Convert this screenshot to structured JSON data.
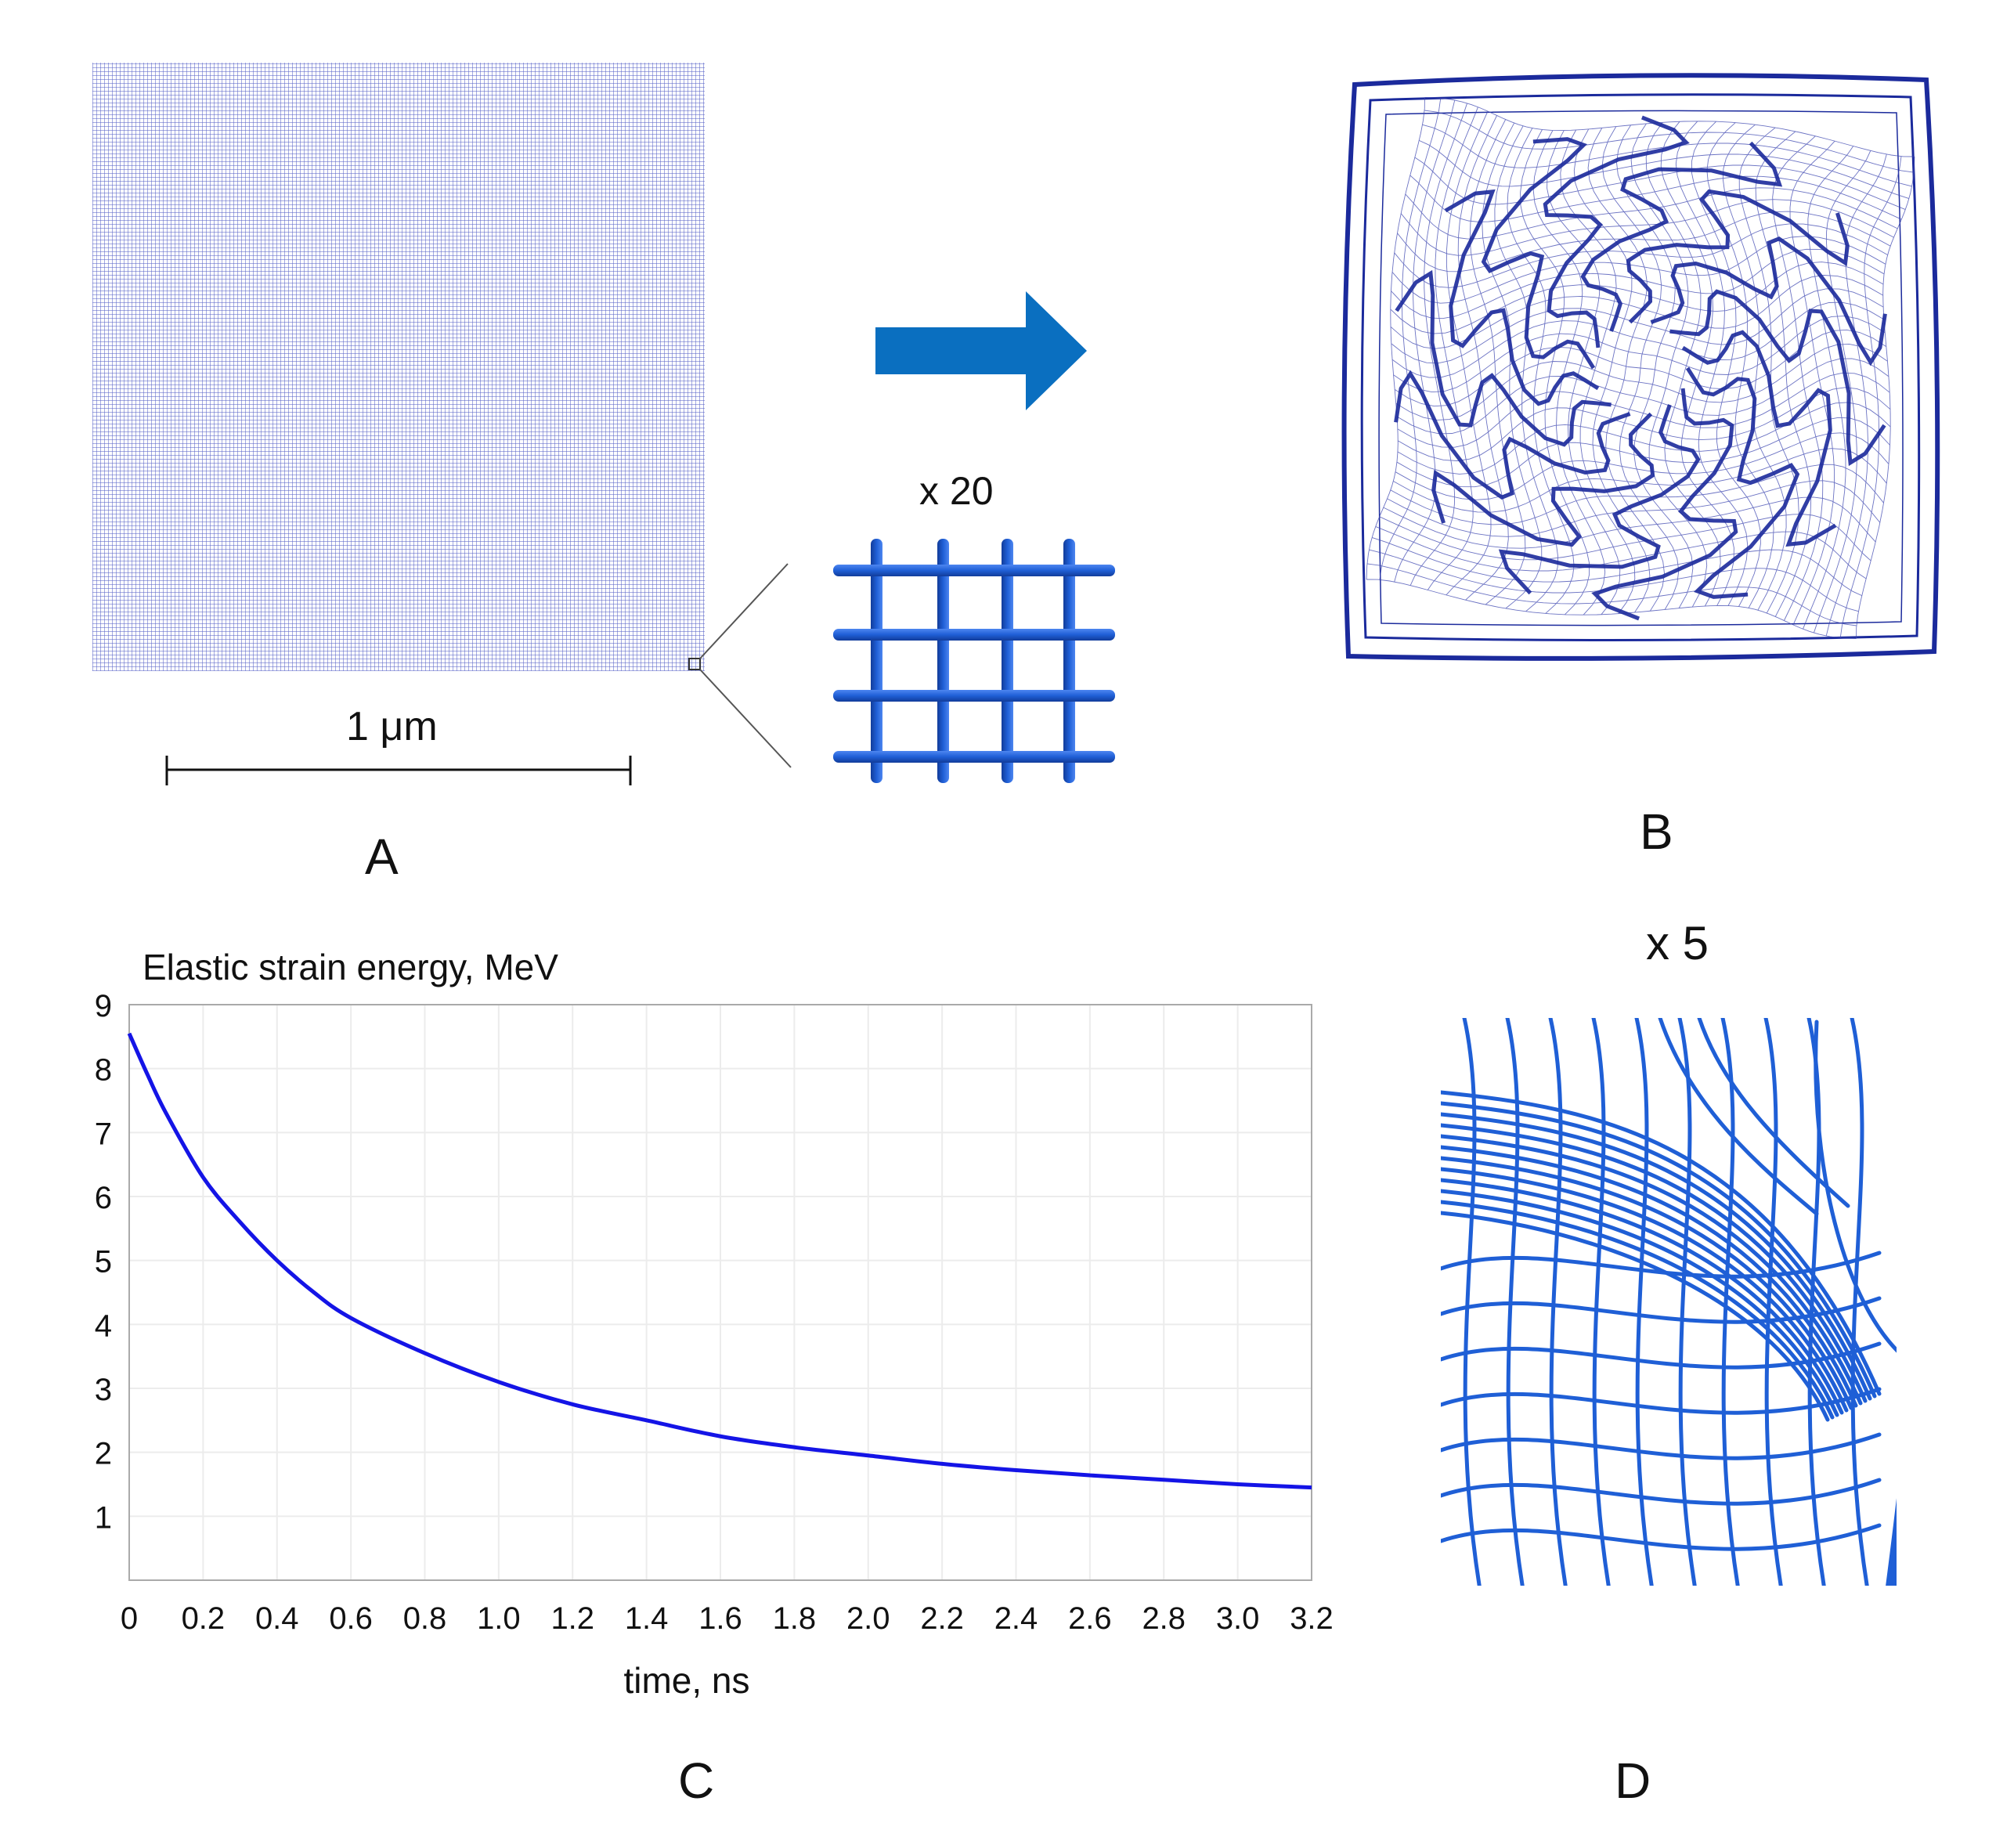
{
  "panels": {
    "a": {
      "letter": "A",
      "scale_label": "1 μm",
      "zoom_label": "x 20"
    },
    "b": {
      "letter": "B"
    },
    "c": {
      "letter": "C"
    },
    "d": {
      "letter": "D",
      "zoom_label": "x 5"
    }
  },
  "colors": {
    "mesh": "#3b45b0",
    "tube": "#1f5fd6",
    "arrow": "#0a6fc0",
    "curve": "#1414e6",
    "deformed": "#1b2a9c"
  },
  "chart_data": {
    "type": "line",
    "title": "Elastic strain energy, MeV",
    "xlabel": "time, ns",
    "ylabel": "",
    "xlim": [
      0,
      3.2
    ],
    "ylim": [
      0,
      9
    ],
    "x_ticks": [
      "0",
      "0.2",
      "0.4",
      "0.6",
      "0.8",
      "1.0",
      "1.2",
      "1.4",
      "1.6",
      "1.8",
      "2.0",
      "2.2",
      "2.4",
      "2.6",
      "2.8",
      "3.0",
      "3.2"
    ],
    "y_ticks": [
      "1",
      "2",
      "3",
      "4",
      "5",
      "6",
      "7",
      "8",
      "9"
    ],
    "series": [
      {
        "name": "Elastic strain energy",
        "x": [
          0,
          0.05,
          0.1,
          0.2,
          0.3,
          0.4,
          0.5,
          0.6,
          0.8,
          1.0,
          1.2,
          1.4,
          1.6,
          1.8,
          2.0,
          2.2,
          2.4,
          2.6,
          2.8,
          3.0,
          3.2
        ],
        "y": [
          8.55,
          7.9,
          7.3,
          6.3,
          5.6,
          5.0,
          4.5,
          4.1,
          3.55,
          3.1,
          2.75,
          2.5,
          2.25,
          2.08,
          1.95,
          1.82,
          1.72,
          1.64,
          1.57,
          1.5,
          1.45
        ]
      }
    ]
  }
}
